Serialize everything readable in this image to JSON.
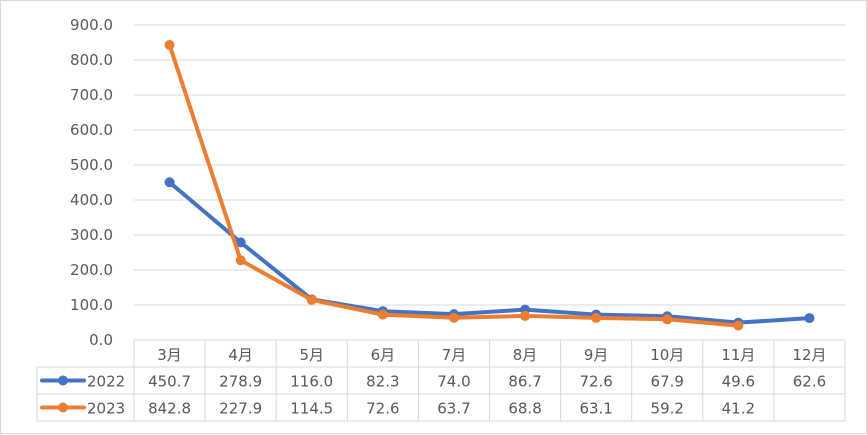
{
  "chart_data": {
    "type": "line",
    "title": "",
    "xlabel": "",
    "ylabel": "",
    "categories": [
      "3月",
      "4月",
      "5月",
      "6月",
      "7月",
      "8月",
      "9月",
      "10月",
      "11月",
      "12月"
    ],
    "ylim": [
      0,
      900
    ],
    "yticks": [
      "0.0",
      "100.0",
      "200.0",
      "300.0",
      "400.0",
      "500.0",
      "600.0",
      "700.0",
      "800.0",
      "900.0"
    ],
    "grid": true,
    "legend": "data-table-left",
    "series": [
      {
        "name": "2022",
        "color": "#4472c4",
        "values": [
          450.7,
          278.9,
          116.0,
          82.3,
          74.0,
          86.7,
          72.6,
          67.9,
          49.6,
          62.6
        ],
        "labels": [
          "450.7",
          "278.9",
          "116.0",
          "82.3",
          "74.0",
          "86.7",
          "72.6",
          "67.9",
          "49.6",
          "62.6"
        ]
      },
      {
        "name": "2023",
        "color": "#ed7d31",
        "values": [
          842.8,
          227.9,
          114.5,
          72.6,
          63.7,
          68.8,
          63.1,
          59.2,
          41.2,
          null
        ],
        "labels": [
          "842.8",
          "227.9",
          "114.5",
          "72.6",
          "63.7",
          "68.8",
          "63.1",
          "59.2",
          "41.2",
          ""
        ]
      }
    ]
  }
}
